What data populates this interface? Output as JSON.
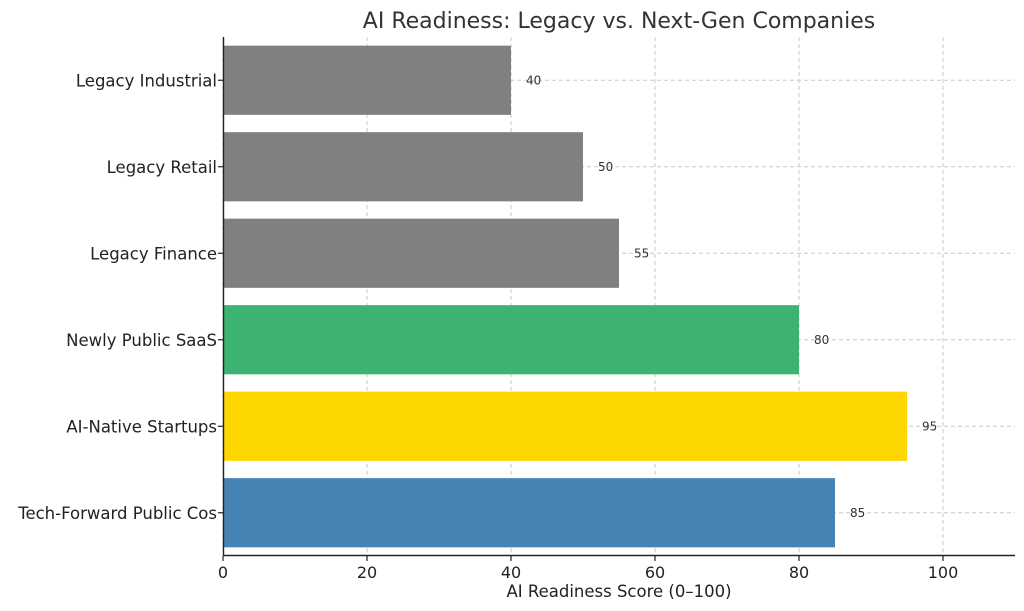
{
  "chart_data": {
    "type": "bar",
    "orientation": "horizontal",
    "title": "AI Readiness: Legacy vs. Next-Gen Companies",
    "xlabel": "AI Readiness Score (0–100)",
    "ylabel": "",
    "xlim": [
      0,
      110
    ],
    "x_ticks": [
      0,
      20,
      40,
      60,
      80,
      100
    ],
    "grid": true,
    "categories": [
      "Legacy Industrial",
      "Legacy Retail",
      "Legacy Finance",
      "Newly Public SaaS",
      "AI-Native Startups",
      "Tech-Forward Public Cos"
    ],
    "values": [
      40,
      50,
      55,
      80,
      95,
      85
    ],
    "colors": [
      "#808080",
      "#808080",
      "#808080",
      "#3cb371",
      "#ffd700",
      "#4682b4"
    ]
  }
}
